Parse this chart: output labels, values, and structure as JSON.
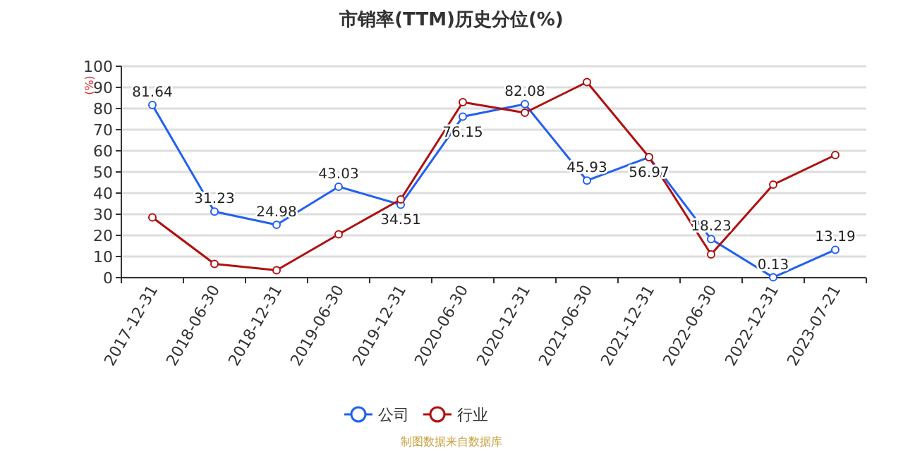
{
  "chart_data": {
    "type": "line",
    "title": "市销率(TTM)历史分位(%)",
    "ylabel": "(%)",
    "categories": [
      "2017-12-31",
      "2018-06-30",
      "2018-12-31",
      "2019-06-30",
      "2019-12-31",
      "2020-06-30",
      "2020-12-31",
      "2021-06-30",
      "2021-12-31",
      "2022-06-30",
      "2022-12-31",
      "2023-07-21"
    ],
    "series": [
      {
        "name": "公司",
        "color": "#2160f0",
        "values": [
          81.64,
          31.23,
          24.98,
          43.03,
          34.51,
          76.15,
          82.08,
          45.93,
          56.97,
          18.23,
          0.13,
          13.19
        ],
        "value_labels": [
          "81.64",
          "31.23",
          "24.98",
          "43.03",
          "34.51",
          "76.15",
          "82.08",
          "45.93",
          "56.97",
          "18.23",
          "0.13",
          "13.19"
        ]
      },
      {
        "name": "行业",
        "color": "#b01010",
        "values": [
          28.5,
          6.5,
          3.5,
          20.5,
          37,
          83,
          78,
          92.5,
          57,
          11,
          44,
          58
        ]
      }
    ],
    "ylim": [
      0,
      100
    ],
    "yticks": [
      0,
      10,
      20,
      30,
      40,
      50,
      60,
      70,
      80,
      90,
      100
    ],
    "grid": "y",
    "legend": "bottom",
    "marker": "circle",
    "line_style": "solid",
    "annotations": [
      "制图数据来自数据库"
    ]
  }
}
